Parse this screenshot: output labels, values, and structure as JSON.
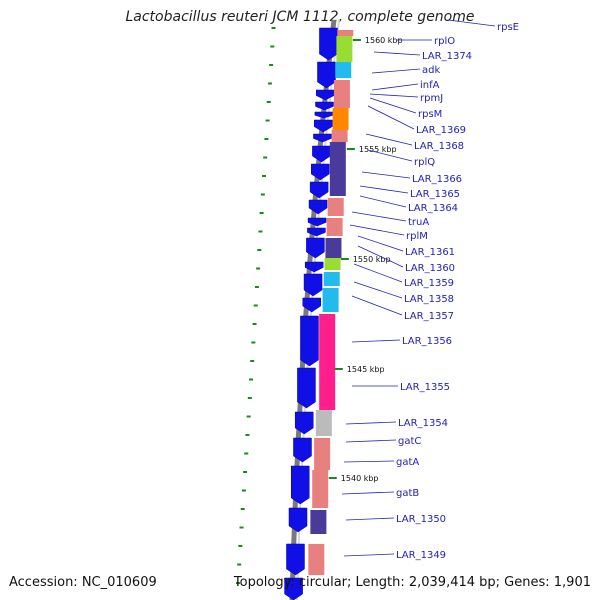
{
  "title": "Lactobacillus reuteri JCM 1112, complete genome",
  "footer": {
    "accession": "Accession: NC_010609",
    "summary": "Topology: circular; Length: 2,039,414 bp; Genes: 1,901"
  },
  "kbp_markers": [
    "1560 kbp",
    "1555 kbp",
    "1550 kbp",
    "1545 kbp",
    "1540 kbp"
  ],
  "gene_labels": [
    "rpsE",
    "rplO",
    "LAR_1374",
    "adk",
    "infA",
    "rpmJ",
    "rpsM",
    "LAR_1369",
    "LAR_1368",
    "rplQ",
    "LAR_1366",
    "LAR_1365",
    "LAR_1364",
    "truA",
    "rplM",
    "LAR_1361",
    "LAR_1360",
    "LAR_1359",
    "LAR_1358",
    "LAR_1357",
    "LAR_1356",
    "LAR_1355",
    "LAR_1354",
    "gatC",
    "gatA",
    "gatB",
    "LAR_1350",
    "LAR_1349"
  ],
  "colors": {
    "gene_strand": "#1010e6",
    "label": "#2222bb",
    "backbone": "#7a7a7a",
    "tick": "#1a8a1a",
    "salmon": "#e88080",
    "pink": "#ff1e8c",
    "purple": "#4a3a9a",
    "lightgreen": "#99dd33",
    "cyan": "#22bbee",
    "orange": "#ff8800",
    "gray": "#bbbbbb"
  }
}
